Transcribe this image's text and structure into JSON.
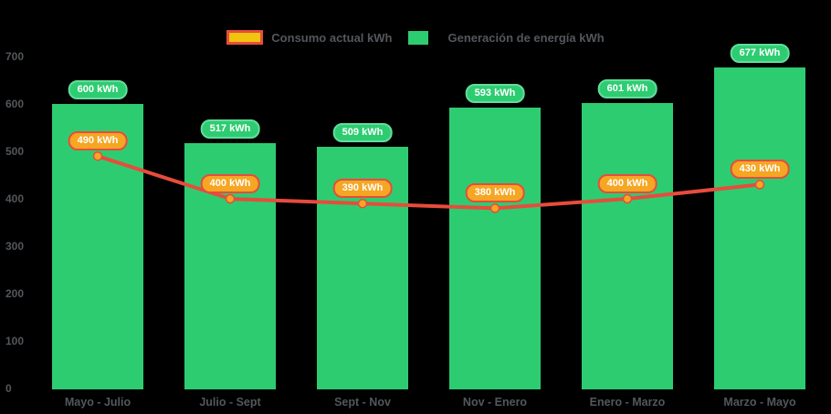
{
  "chart_data": {
    "type": "combo",
    "categories": [
      "Mayo - Julio",
      "Julio - Sept",
      "Sept - Nov",
      "Nov - Enero",
      "Enero - Marzo",
      "Marzo - Mayo"
    ],
    "series": [
      {
        "name": "Consumo actual kWh",
        "type": "line",
        "values": [
          490,
          400,
          390,
          380,
          400,
          430
        ],
        "color": "#e74c3c",
        "marker_color": "#f5a623"
      },
      {
        "name": "Generación de energía kWh",
        "type": "bar",
        "values": [
          600,
          517,
          509,
          593,
          601,
          677
        ],
        "color": "#2ecc71"
      }
    ],
    "value_suffix": " kWh",
    "data_labels": {
      "bar": [
        "600 kWh",
        "517 kWh",
        "509 kWh",
        "593 kWh",
        "601 kWh",
        "677 kWh"
      ],
      "line": [
        "490 kWh",
        "400 kWh",
        "390 kWh",
        "380 kWh",
        "400 kWh",
        "430 kWh"
      ]
    },
    "y_ticks": [
      0,
      100,
      200,
      300,
      400,
      500,
      600,
      700
    ],
    "ylim": [
      0,
      700
    ],
    "grid": false,
    "legend_position": "top-center",
    "background": "#000000"
  },
  "legend": {
    "consumo_label": "Consumo actual kWh",
    "generacion_label": "Generación de energía kWh"
  },
  "colors": {
    "bar_green": "#2ecc71",
    "line_red": "#e74c3c",
    "marker_orange": "#f5a623",
    "legend_yellow_fill": "#f1c40f",
    "axis_text_gray": "#53575c",
    "badge_text": "#ffffff"
  }
}
